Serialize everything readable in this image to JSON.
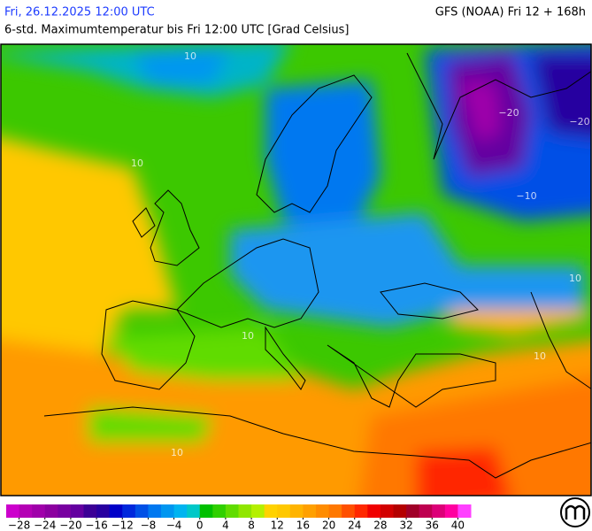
{
  "header": {
    "date": "Fri, 26.12.2025 12:00 UTC",
    "model": "GFS (NOAA) Fri 12 + 168h",
    "subtitle": "6-std. Maximumtemperatur bis Fri 12:00 UTC [Grad Celsius]"
  },
  "map": {
    "contour_labels": [
      "10",
      "10",
      "−20",
      "−20",
      "−10",
      "10",
      "10",
      "10",
      "10"
    ]
  },
  "legend": {
    "range": [
      -30,
      42
    ],
    "colors": [
      "#cc00cc",
      "#b400b4",
      "#a000aa",
      "#8c00a0",
      "#7800a0",
      "#6400a0",
      "#3c0096",
      "#2800a0",
      "#0000c8",
      "#0028dc",
      "#0050e6",
      "#0078f0",
      "#0096f0",
      "#00b4f0",
      "#00c8c8",
      "#00c000",
      "#30d000",
      "#60dc00",
      "#90e600",
      "#b4f000",
      "#ffd200",
      "#ffc800",
      "#ffb400",
      "#ffa000",
      "#ff8c00",
      "#ff7800",
      "#ff5000",
      "#ff2800",
      "#f00000",
      "#d20000",
      "#b40000",
      "#a00028",
      "#be0050",
      "#dc0078",
      "#ff00a0",
      "#ff40ff"
    ],
    "ticks": [
      {
        "value": -28,
        "label": "−28"
      },
      {
        "value": -24,
        "label": "−24"
      },
      {
        "value": -20,
        "label": "−20"
      },
      {
        "value": -16,
        "label": "−16"
      },
      {
        "value": -12,
        "label": "−12"
      },
      {
        "value": -8,
        "label": "−8"
      },
      {
        "value": -4,
        "label": "−4"
      },
      0,
      4,
      8,
      12,
      16,
      20,
      24,
      28,
      32,
      36,
      40
    ]
  }
}
